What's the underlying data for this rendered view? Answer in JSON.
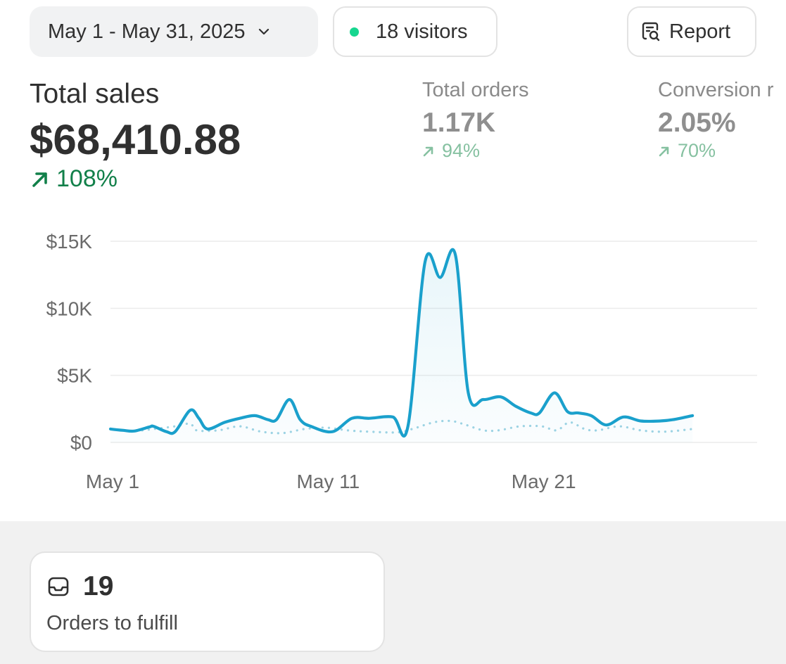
{
  "toolbar": {
    "date_range": "May 1 - May 31, 2025",
    "visitors": "18 visitors",
    "report_label": "Report",
    "live_dot_color": "#16d68f"
  },
  "metrics": {
    "total_sales": {
      "label": "Total sales",
      "value": "$68,410.88",
      "change": "108%",
      "trend": "up"
    },
    "total_orders": {
      "label": "Total orders",
      "value": "1.17K",
      "change": "94%",
      "trend": "up"
    },
    "conversion": {
      "label": "Conversion r",
      "value": "2.05%",
      "change": "70%",
      "trend": "up"
    }
  },
  "chart_data": {
    "type": "line",
    "title": "",
    "xlabel": "",
    "ylabel": "",
    "y_ticks": [
      "$0",
      "$5K",
      "$10K",
      "$15K"
    ],
    "x_ticks": [
      {
        "day": 1,
        "label": "May 1"
      },
      {
        "day": 11,
        "label": "May 11"
      },
      {
        "day": 21,
        "label": "May 21"
      }
    ],
    "ylim": [
      0,
      15000
    ],
    "xlim": [
      1,
      31
    ],
    "grid": true,
    "legend": "none",
    "series": [
      {
        "style": "solid",
        "color": "#1aa0cc",
        "fill": true,
        "points": [
          [
            1,
            1000
          ],
          [
            1.6,
            900
          ],
          [
            2.1,
            850
          ],
          [
            2.8,
            1150
          ],
          [
            3,
            1200
          ],
          [
            3.6,
            800
          ],
          [
            4,
            800
          ],
          [
            4.7,
            2400
          ],
          [
            5.1,
            1800
          ],
          [
            5.5,
            1000
          ],
          [
            6.3,
            1500
          ],
          [
            7,
            1800
          ],
          [
            7.7,
            2000
          ],
          [
            8.3,
            1700
          ],
          [
            8.7,
            1700
          ],
          [
            9.3,
            3200
          ],
          [
            9.8,
            1700
          ],
          [
            10.3,
            1200
          ],
          [
            11.3,
            800
          ],
          [
            12.2,
            1800
          ],
          [
            13,
            1800
          ],
          [
            14.1,
            1900
          ],
          [
            14.8,
            1200
          ],
          [
            15.6,
            13500
          ],
          [
            16.3,
            12300
          ],
          [
            17,
            14000
          ],
          [
            17.6,
            3700
          ],
          [
            18.3,
            3200
          ],
          [
            19.1,
            3400
          ],
          [
            19.8,
            2700
          ],
          [
            20.5,
            2200
          ],
          [
            20.9,
            2200
          ],
          [
            21.6,
            3700
          ],
          [
            22.2,
            2300
          ],
          [
            22.7,
            2200
          ],
          [
            23.3,
            2000
          ],
          [
            24,
            1300
          ],
          [
            24.8,
            1900
          ],
          [
            25.6,
            1600
          ],
          [
            26.5,
            1600
          ],
          [
            27.1,
            1700
          ],
          [
            28,
            2000
          ]
        ]
      },
      {
        "style": "dotted",
        "color": "#9fd4e4",
        "fill": false,
        "points": [
          [
            1,
            1000
          ],
          [
            2,
            850
          ],
          [
            3,
            1000
          ],
          [
            4,
            1200
          ],
          [
            4.7,
            1400
          ],
          [
            5,
            900
          ],
          [
            6,
            900
          ],
          [
            7,
            1200
          ],
          [
            8,
            800
          ],
          [
            9,
            700
          ],
          [
            10,
            1000
          ],
          [
            11,
            1100
          ],
          [
            12,
            900
          ],
          [
            13,
            800
          ],
          [
            14.3,
            750
          ],
          [
            15,
            1000
          ],
          [
            16,
            1500
          ],
          [
            16.8,
            1600
          ],
          [
            17.5,
            1300
          ],
          [
            18.3,
            900
          ],
          [
            19,
            900
          ],
          [
            20,
            1200
          ],
          [
            21,
            1200
          ],
          [
            21.7,
            900
          ],
          [
            22.3,
            1500
          ],
          [
            23,
            1000
          ],
          [
            23.6,
            900
          ],
          [
            24.6,
            1200
          ],
          [
            25.6,
            900
          ],
          [
            26.7,
            800
          ],
          [
            28,
            1000
          ]
        ]
      }
    ]
  },
  "fulfill": {
    "count": "19",
    "label": "Orders to fulfill"
  },
  "colors": {
    "positive": "#12804a",
    "positive_muted": "#86c1a1",
    "line": "#1aa0cc",
    "comparison": "#9fd4e4"
  }
}
